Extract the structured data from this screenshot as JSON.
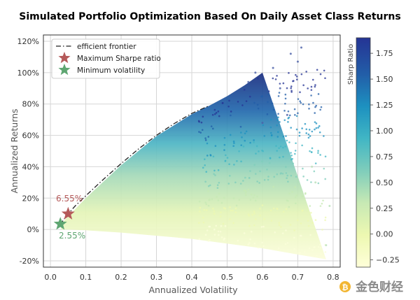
{
  "chart_data": {
    "type": "scatter",
    "title": "Simulated Portfolio Optimization Based On Daily Asset Class Returns",
    "xlabel": "Annualized Volatility",
    "ylabel": "Annualized Returns",
    "xlim": [
      -0.02,
      0.82
    ],
    "ylim": [
      -0.24,
      1.24
    ],
    "x_ticks": [
      0.0,
      0.1,
      0.2,
      0.3,
      0.4,
      0.5,
      0.6,
      0.7,
      0.8
    ],
    "x_tick_labels": [
      "0.0",
      "0.1",
      "0.2",
      "0.3",
      "0.4",
      "0.5",
      "0.6",
      "0.7",
      "0.8"
    ],
    "y_ticks": [
      -0.2,
      0.0,
      0.2,
      0.4,
      0.6,
      0.8,
      1.0,
      1.2
    ],
    "y_tick_labels": [
      "-20%",
      "0%",
      "20%",
      "40%",
      "60%",
      "80%",
      "100%",
      "120%"
    ],
    "grid": true,
    "colorbar": {
      "label": "Sharp Ratio",
      "range": [
        -0.32,
        1.9
      ],
      "ticks": [
        -0.25,
        0.0,
        0.25,
        0.5,
        0.75,
        1.0,
        1.25,
        1.5,
        1.75
      ],
      "tick_labels": [
        "−0.25",
        "0.00",
        "0.25",
        "0.50",
        "0.75",
        "1.00",
        "1.25",
        "1.50",
        "1.75"
      ],
      "colormap": "YlGnBu"
    },
    "frontier": {
      "name": "efficient frontier",
      "style": "dash-dot",
      "points": [
        [
          0.028,
          0.03
        ],
        [
          0.035,
          0.055
        ],
        [
          0.05,
          0.1
        ],
        [
          0.07,
          0.15
        ],
        [
          0.1,
          0.215
        ],
        [
          0.15,
          0.32
        ],
        [
          0.2,
          0.42
        ],
        [
          0.25,
          0.515
        ],
        [
          0.3,
          0.6
        ],
        [
          0.35,
          0.675
        ],
        [
          0.4,
          0.74
        ],
        [
          0.45,
          0.79
        ]
      ]
    },
    "scatter_region": {
      "upper_edge": [
        [
          0.03,
          0.035
        ],
        [
          0.1,
          0.2
        ],
        [
          0.2,
          0.41
        ],
        [
          0.3,
          0.595
        ],
        [
          0.4,
          0.735
        ],
        [
          0.45,
          0.79
        ],
        [
          0.5,
          0.85
        ],
        [
          0.55,
          0.92
        ],
        [
          0.6,
          1.0
        ]
      ],
      "lower_edge": [
        [
          0.03,
          0.0
        ],
        [
          0.1,
          -0.005
        ],
        [
          0.2,
          -0.02
        ],
        [
          0.3,
          -0.04
        ],
        [
          0.4,
          -0.06
        ],
        [
          0.5,
          -0.09
        ],
        [
          0.6,
          -0.12
        ],
        [
          0.7,
          -0.16
        ],
        [
          0.78,
          -0.19
        ]
      ],
      "outliers": [
        [
          0.58,
          1.0
        ],
        [
          0.63,
          1.03
        ],
        [
          0.68,
          1.12
        ],
        [
          0.71,
          1.16
        ],
        [
          0.7,
          1.07
        ],
        [
          0.65,
          0.9
        ],
        [
          0.56,
          0.94
        ],
        [
          0.67,
          0.73
        ],
        [
          0.6,
          0.68
        ],
        [
          0.74,
          0.4
        ],
        [
          0.79,
          0.15
        ],
        [
          0.75,
          0.3
        ],
        [
          0.78,
          -0.1
        ]
      ]
    },
    "legend": {
      "position": "top-left",
      "entries": [
        {
          "label": "efficient frontier",
          "marker": "dash-dot-line",
          "color": "#222222"
        },
        {
          "label": "Maximum Sharpe ratio",
          "marker": "star",
          "color": "#b55a5a"
        },
        {
          "label": "Minimum volatility",
          "marker": "star",
          "color": "#5fa672"
        }
      ]
    },
    "max_sharpe": {
      "x": 0.05,
      "y": 0.1,
      "label": "6.55%",
      "color": "#b55a5a"
    },
    "min_vol": {
      "x": 0.028,
      "y": 0.035,
      "label": "2.55%",
      "color": "#5fa672"
    }
  },
  "watermark": {
    "text": "金色财经",
    "icon": "bitcoin-coin-icon"
  }
}
